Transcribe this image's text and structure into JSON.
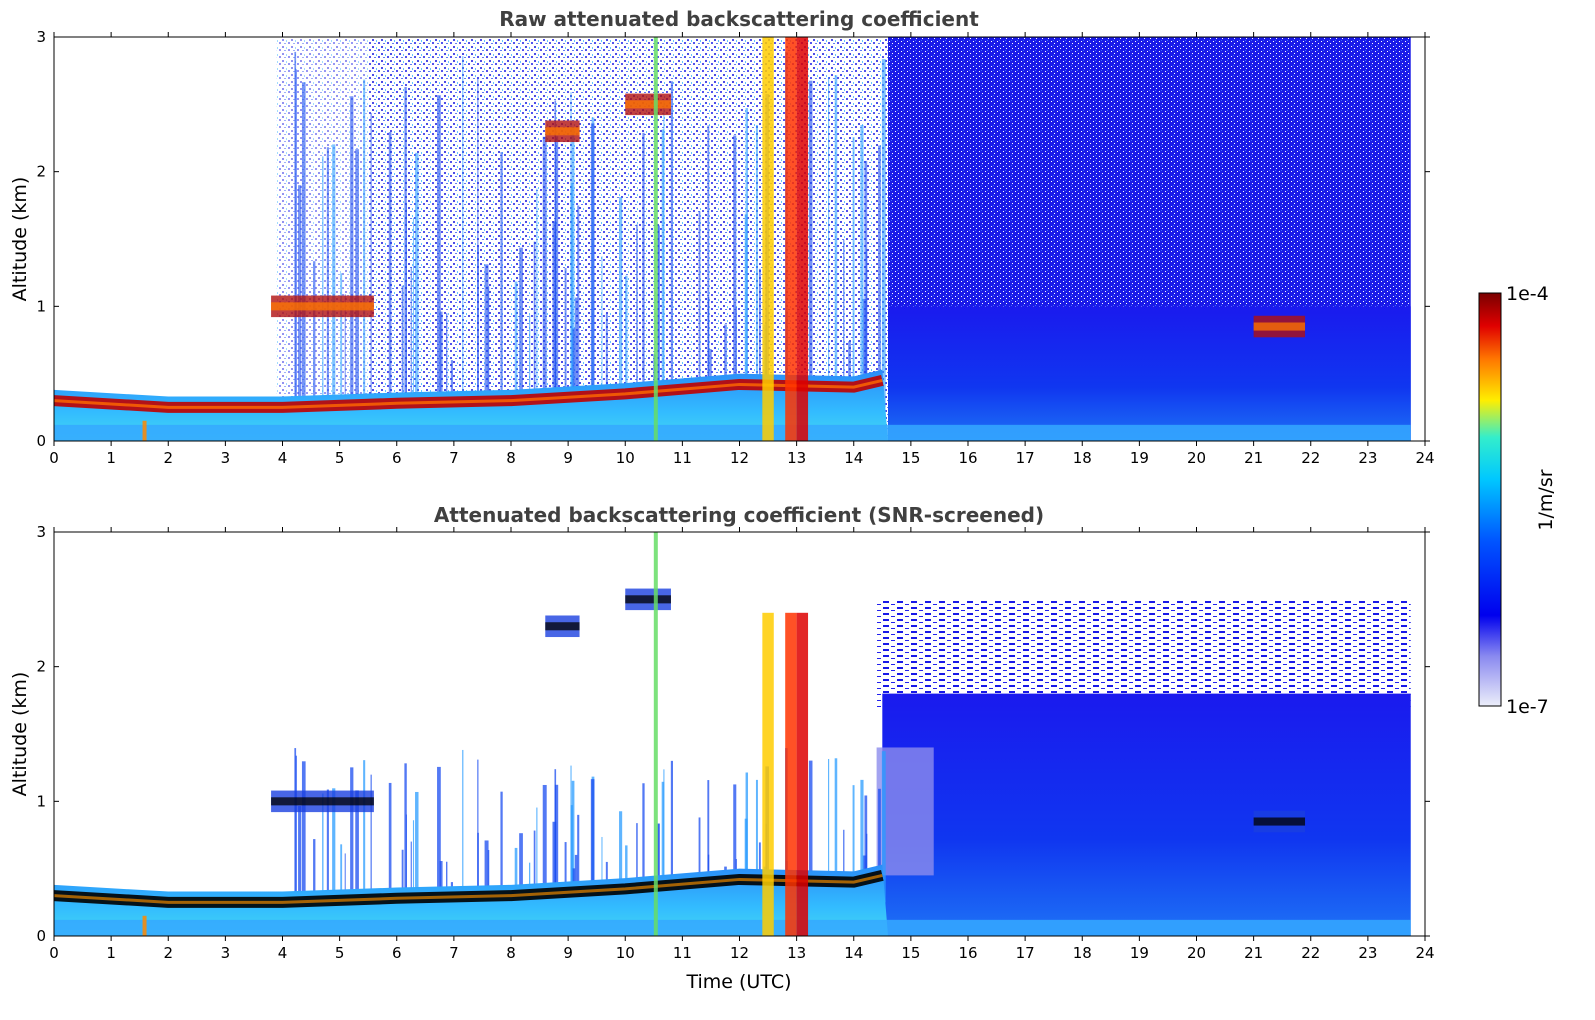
{
  "chart_data": [
    {
      "type": "heatmap",
      "title": "Raw attenuated backscattering coefficient",
      "ylabel": "Altitude (km)",
      "xlabel": "",
      "xlim": [
        0,
        24
      ],
      "ylim": [
        0,
        3
      ],
      "x_ticks": [
        "0",
        "1",
        "2",
        "3",
        "4",
        "5",
        "6",
        "7",
        "8",
        "9",
        "10",
        "11",
        "12",
        "13",
        "14",
        "15",
        "16",
        "17",
        "18",
        "19",
        "20",
        "21",
        "22",
        "23",
        "24"
      ],
      "y_ticks": [
        "0",
        "1",
        "2",
        "3"
      ],
      "data_end_hour": 23.75,
      "features": {
        "boundary_layer_top_km": [
          {
            "time": 0,
            "alt": 0.3
          },
          {
            "time": 2,
            "alt": 0.25
          },
          {
            "time": 4,
            "alt": 0.25
          },
          {
            "time": 6,
            "alt": 0.28
          },
          {
            "time": 8,
            "alt": 0.3
          },
          {
            "time": 10,
            "alt": 0.35
          },
          {
            "time": 12,
            "alt": 0.42
          },
          {
            "time": 14,
            "alt": 0.4
          },
          {
            "time": 14.5,
            "alt": 0.45
          }
        ],
        "precipitation_columns_hours": [
          1.55,
          10.5,
          12.4,
          12.8,
          13.0
        ],
        "elevated_layers": [
          {
            "t0": 3.8,
            "t1": 5.6,
            "alt": 1.0
          },
          {
            "t0": 8.6,
            "t1": 9.2,
            "alt": 2.3
          },
          {
            "t0": 10.0,
            "t1": 10.8,
            "alt": 2.5
          },
          {
            "t0": 21.0,
            "t1": 21.9,
            "alt": 0.85
          }
        ]
      }
    },
    {
      "type": "heatmap",
      "title": "Attenuated backscattering coefficient (SNR-screened)",
      "ylabel": "Altitude (km)",
      "xlabel": "Time (UTC)",
      "xlim": [
        0,
        24
      ],
      "ylim": [
        0,
        3
      ],
      "x_ticks": [
        "0",
        "1",
        "2",
        "3",
        "4",
        "5",
        "6",
        "7",
        "8",
        "9",
        "10",
        "11",
        "12",
        "13",
        "14",
        "15",
        "16",
        "17",
        "18",
        "19",
        "20",
        "21",
        "22",
        "23",
        "24"
      ],
      "y_ticks": [
        "0",
        "1",
        "2",
        "3"
      ],
      "data_end_hour": 23.75
    }
  ],
  "colorbar": {
    "label": "1/m/sr",
    "max_label": "1e-4",
    "min_label": "1e-7",
    "scale": "log",
    "colors": [
      "#e8e8f8",
      "#0000ee",
      "#00aaff",
      "#22eeee",
      "#ffee00",
      "#ff5500",
      "#880000"
    ]
  }
}
